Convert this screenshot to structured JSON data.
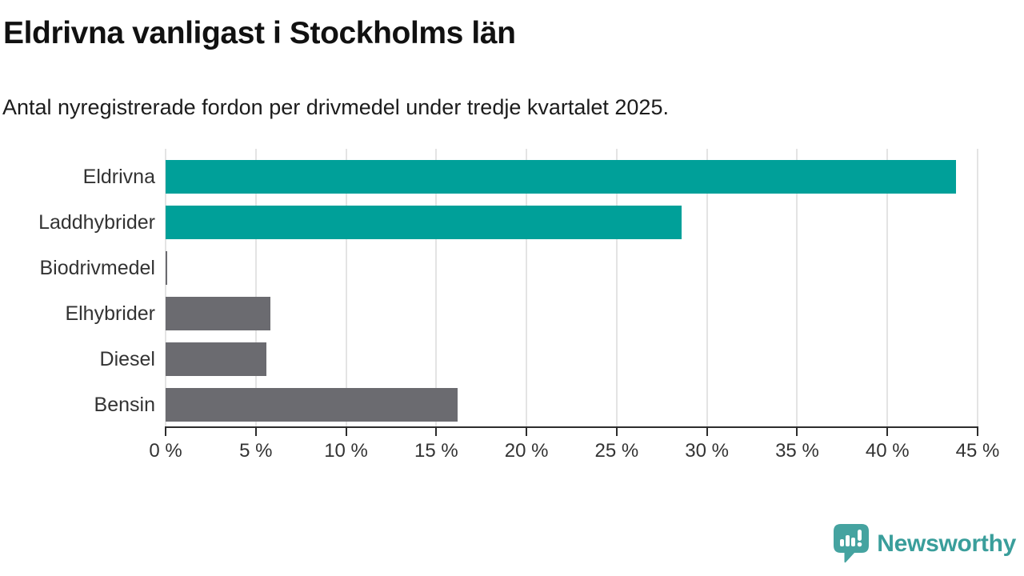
{
  "header": {
    "title": "Eldrivna vanligast i Stockholms län",
    "subtitle": "Antal nyregistrerade fordon per drivmedel under tredje kvartalet 2025."
  },
  "chart_data": {
    "type": "bar",
    "orientation": "horizontal",
    "title": "Eldrivna vanligast i Stockholms län",
    "subtitle": "Antal nyregistrerade fordon per drivmedel under tredje kvartalet 2025.",
    "categories": [
      "Eldrivna",
      "Laddhybrider",
      "Biodrivmedel",
      "Elhybrider",
      "Diesel",
      "Bensin"
    ],
    "values": [
      43.8,
      28.6,
      0.1,
      5.8,
      5.6,
      16.2
    ],
    "unit": "%",
    "bar_colors": [
      "#00a099",
      "#00a099",
      "#6b6b70",
      "#6b6b70",
      "#6b6b70",
      "#6b6b70"
    ],
    "xlim": [
      0,
      45
    ],
    "x_tick_values": [
      0,
      5,
      10,
      15,
      20,
      25,
      30,
      35,
      40,
      45
    ],
    "x_tick_labels": [
      "0 %",
      "5 %",
      "10 %",
      "15 %",
      "20 %",
      "25 %",
      "30 %",
      "35 %",
      "40 %",
      "45 %"
    ],
    "grid": true,
    "legend": false
  },
  "footer": {
    "brand": "Newsworthy"
  },
  "colors": {
    "teal": "#00a099",
    "gray": "#6b6b70",
    "gridline": "#e4e4e4",
    "axis": "#2d2d2d",
    "logo_teal": "#45a3a0",
    "brand_text": "#3a9e9b"
  }
}
